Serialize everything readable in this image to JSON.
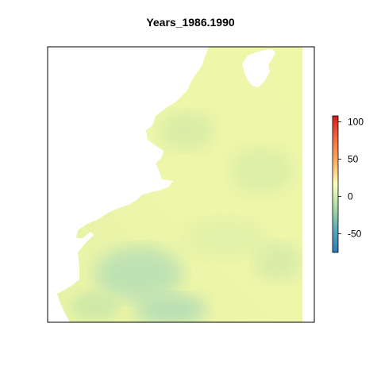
{
  "title": "Years_1986.1990",
  "colors": {
    "land": "#ffffff",
    "water_base": "#eef5a8",
    "low_anomaly": "#bfe3b0",
    "mid_anomaly": "#cfe8a6",
    "frame": "#000000"
  },
  "legend": {
    "palette": [
      "#2c7bb6",
      "#5aa9b8",
      "#abdda4",
      "#ffffbf",
      "#fdae61",
      "#f46d43",
      "#d7191c"
    ],
    "min": -75,
    "max": 108,
    "ticks": [
      {
        "value": 100,
        "label": "100"
      },
      {
        "value": 50,
        "label": "50"
      },
      {
        "value": 0,
        "label": "0"
      },
      {
        "value": -50,
        "label": "-50"
      }
    ]
  }
}
